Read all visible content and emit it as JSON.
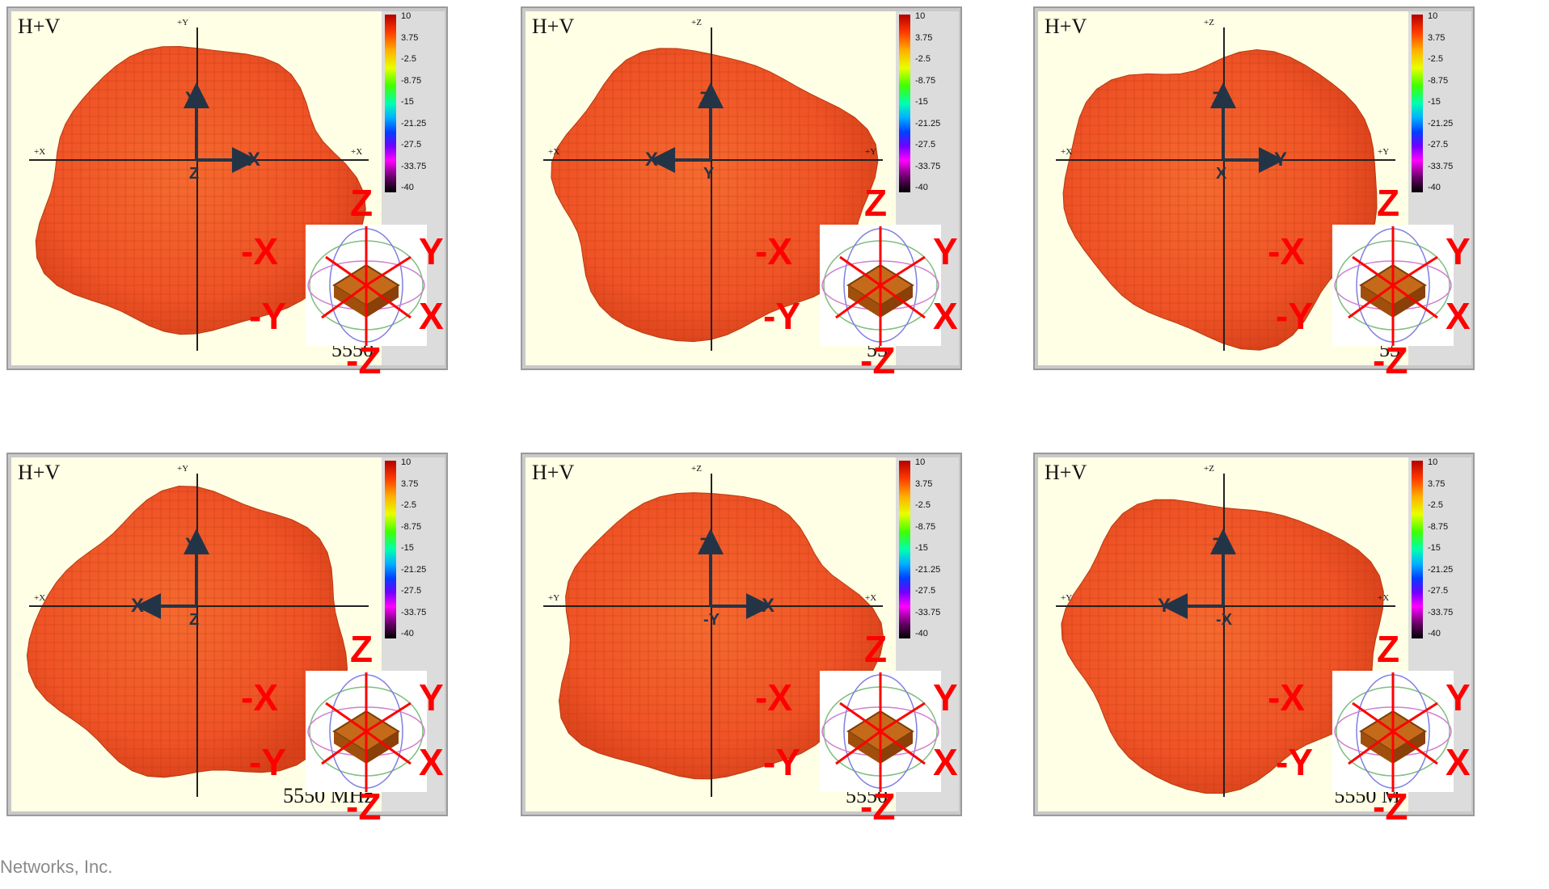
{
  "footer": "Networks, Inc.",
  "colorbar_ticks": [
    "10",
    "3.75",
    "-2.5",
    "-8.75",
    "-15",
    "-21.25",
    "-27.5",
    "-33.75",
    "-40"
  ],
  "panels": [
    {
      "mode": "H+V",
      "top_label": "+Y",
      "left_label": "+X",
      "right_label": "+X",
      "freq": "5550",
      "inner_axes": {
        "up": "Y",
        "right": "X",
        "center": "Z"
      }
    },
    {
      "mode": "H+V",
      "top_label": "+Z",
      "left_label": "+X",
      "right_label": "+Y",
      "freq": "55",
      "inner_axes": {
        "up": "Z",
        "left": "X",
        "center": "Y"
      }
    },
    {
      "mode": "H+V",
      "top_label": "+Z",
      "left_label": "+X",
      "right_label": "+Y",
      "freq": "55",
      "inner_axes": {
        "up": "Z",
        "right": "Y",
        "center": "X"
      }
    },
    {
      "mode": "H+V",
      "top_label": "+Y",
      "left_label": "+X",
      "right_label": "",
      "freq": "5550 MHz",
      "inner_axes": {
        "up": "Y",
        "left": "X",
        "center": "Z"
      }
    },
    {
      "mode": "H+V",
      "top_label": "+Z",
      "left_label": "+Y",
      "right_label": "+X",
      "freq": "5550",
      "inner_axes": {
        "up": "Z",
        "right": "X",
        "center": "-Y"
      }
    },
    {
      "mode": "H+V",
      "top_label": "+Z",
      "left_label": "+Y",
      "right_label": "+X",
      "freq": "5550 M",
      "inner_axes": {
        "up": "Z",
        "left": "Y",
        "center": "-X"
      }
    }
  ],
  "orientation_labels": {
    "z": "Z",
    "neg_x": "-X",
    "y": "Y",
    "neg_y": "-Y",
    "x": "X",
    "neg_z": "-Z"
  },
  "colors": {
    "pattern": "#f05a28",
    "grid": "#b83a10",
    "plot_bg": "#ffffe6",
    "label": "#ff0000",
    "axis": "#233447"
  }
}
